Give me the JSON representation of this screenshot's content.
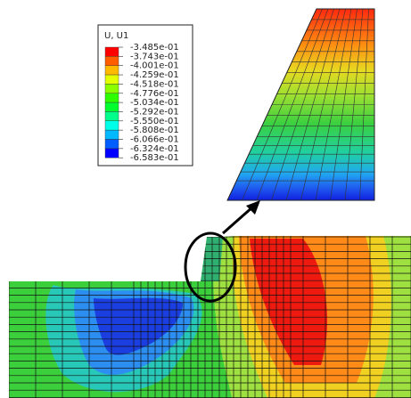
{
  "legend": {
    "title": "U, U1",
    "labels": [
      "-3.485e-01",
      "-3.743e-01",
      "-4.001e-01",
      "-4.259e-01",
      "-4.518e-01",
      "-4.776e-01",
      "-5.034e-01",
      "-5.292e-01",
      "-5.550e-01",
      "-5.808e-01",
      "-6.066e-01",
      "-6.324e-01",
      "-6.583e-01"
    ],
    "colors": [
      "#ff0000",
      "#ff5d00",
      "#ffb900",
      "#e3ff00",
      "#8bff00",
      "#2eff00",
      "#00ff2e",
      "#00ff8b",
      "#00ffe8",
      "#00b9ff",
      "#005dff",
      "#0000ff"
    ]
  }
}
